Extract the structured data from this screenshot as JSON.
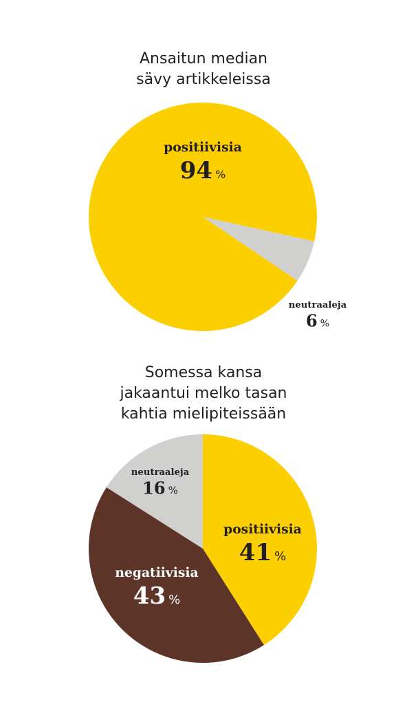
{
  "chart_data": [
    {
      "type": "pie",
      "title": [
        "Ansaitun median",
        "sävy artikkeleissa"
      ],
      "categories": [
        "positiivisia",
        "neutraaleja"
      ],
      "values": [
        94,
        6
      ],
      "colors": [
        "#fccf00",
        "#d0d0cf"
      ],
      "value_unit": "%"
    },
    {
      "type": "pie",
      "title": [
        "Somessa kansa",
        "jakaantui melko tasan",
        "kahtia mielipiteissään"
      ],
      "categories": [
        "positiivisia",
        "negatiivisia",
        "neutraaleja"
      ],
      "values": [
        41,
        43,
        16
      ],
      "colors": [
        "#fccf00",
        "#5c3428",
        "#d0d0cf"
      ],
      "value_unit": "%"
    }
  ]
}
